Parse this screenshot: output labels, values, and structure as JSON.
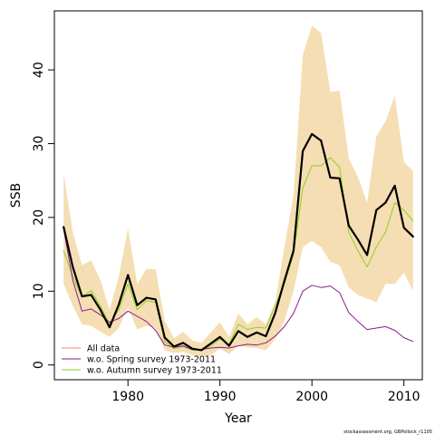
{
  "chart_data": {
    "type": "line",
    "xlabel": "Year",
    "ylabel": "SSB",
    "xlim": [
      1972,
      2012
    ],
    "ylim": [
      -2,
      48
    ],
    "xticks": [
      1980,
      1990,
      2000,
      2010
    ],
    "yticks": [
      0,
      10,
      20,
      30,
      40
    ],
    "grid": false,
    "legend_position": "bottom-left",
    "x": [
      1973,
      1974,
      1975,
      1976,
      1977,
      1978,
      1979,
      1980,
      1981,
      1982,
      1983,
      1984,
      1985,
      1986,
      1987,
      1988,
      1989,
      1990,
      1991,
      1992,
      1993,
      1994,
      1995,
      1996,
      1997,
      1998,
      1999,
      2000,
      2001,
      2002,
      2003,
      2004,
      2005,
      2006,
      2007,
      2008,
      2009,
      2010,
      2011
    ],
    "band": {
      "color": "#f5deb3",
      "lower": [
        11,
        8,
        5.5,
        5.3,
        4.5,
        3.8,
        5,
        7.8,
        4.8,
        5.3,
        5,
        2,
        1.6,
        1.8,
        1.3,
        1.1,
        1.3,
        2.2,
        1.5,
        2.6,
        2.4,
        2.3,
        2,
        3.5,
        6,
        10,
        16,
        16.8,
        16,
        14,
        13.5,
        10.5,
        9.5,
        9,
        8.5,
        11,
        11,
        12.5,
        10
      ],
      "upper": [
        26,
        18,
        13.5,
        14.2,
        11.5,
        7.5,
        12,
        18.5,
        11,
        13,
        13,
        6,
        3.6,
        4.5,
        3.3,
        3,
        4.4,
        5.8,
        3.8,
        7,
        5.5,
        6.5,
        5.5,
        8.5,
        16,
        23,
        42,
        46,
        45,
        37,
        37.2,
        28,
        25.5,
        22,
        31,
        33,
        36.5,
        27.5,
        26.3
      ]
    },
    "series": [
      {
        "name": "All data",
        "color": "#000000",
        "width": 2.2,
        "values": [
          18.7,
          13.3,
          9.3,
          9.5,
          7.5,
          5.1,
          8.2,
          12.2,
          8.1,
          9.1,
          8.9,
          3.7,
          2.5,
          3,
          2.2,
          2,
          2.9,
          3.8,
          2.6,
          4.6,
          3.8,
          4.4,
          3.9,
          7,
          11.4,
          15.5,
          29,
          31.3,
          30.4,
          25.4,
          25.3,
          18.9,
          17,
          14.9,
          21,
          22,
          24.3,
          18.6,
          17.4
        ]
      },
      {
        "name": "w.o. Spring survey 1973-2011",
        "color": "#8b1a8b",
        "width": 1,
        "values": [
          18.5,
          11.5,
          7.3,
          7.6,
          6.8,
          5.8,
          6.3,
          7.3,
          6.6,
          5.9,
          4.7,
          2.7,
          2.4,
          2.6,
          2.1,
          2.1,
          2.3,
          2.4,
          2.3,
          2.6,
          2.8,
          2.7,
          3,
          3.9,
          5.2,
          7,
          10,
          10.8,
          10.5,
          10.7,
          9.8,
          7.1,
          5.9,
          4.8,
          5,
          5.2,
          4.7,
          3.7,
          3.2
        ]
      },
      {
        "name": "w.o. Autumn survey 1973-2011",
        "color": "#8fd11e",
        "width": 1,
        "values": [
          15.5,
          12,
          9.2,
          10.1,
          8,
          5.5,
          7.5,
          11,
          7.5,
          8.7,
          8.5,
          3.2,
          2.2,
          2.5,
          2,
          2,
          2.6,
          3.5,
          2.8,
          5.5,
          4.8,
          5.1,
          5,
          8,
          11,
          15,
          24,
          27,
          27,
          28.1,
          26.8,
          18,
          15.5,
          13.3,
          16,
          18,
          22,
          21,
          19.5
        ]
      }
    ],
    "footer": "stockassessment.org, GBPollock_r1105"
  }
}
